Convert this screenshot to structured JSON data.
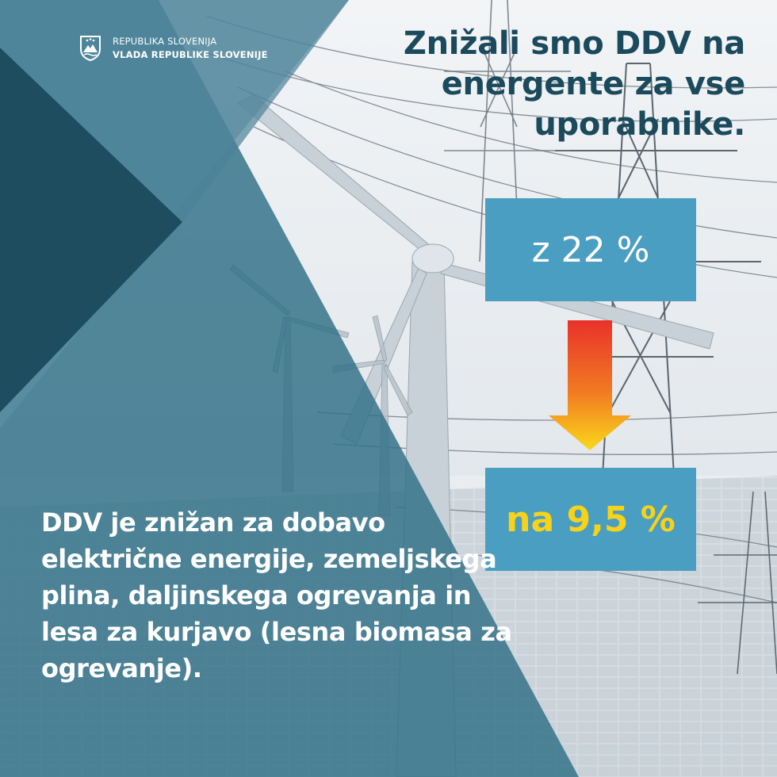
{
  "branding": {
    "line1": "REPUBLIKA SLOVENIJA",
    "line2": "VLADA REPUBLIKE SLOVENIJE"
  },
  "headline": "Znižali smo DDV na energente za vse uporabnike.",
  "rate_from": "z 22 %",
  "rate_to": "na 9,5 %",
  "description": "DDV je znižan za dobavo električne energije, zemeljskega plina, daljinskega ogrevanja in lesa za kurjavo (lesna biomasa za ogrevanje).",
  "colors": {
    "dark_teal": "#1a4a5c",
    "overlay_teal": "#2f6f86",
    "box_blue": "#4a9ec2",
    "highlight_yellow": "#f7d21a",
    "arrow_top": "#e8322b",
    "arrow_bottom": "#f9d81b"
  }
}
